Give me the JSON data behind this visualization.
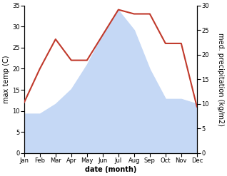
{
  "months": [
    "Jan",
    "Feb",
    "Mar",
    "Apr",
    "May",
    "Jun",
    "Jul",
    "Aug",
    "Sep",
    "Oct",
    "Nov",
    "Dec"
  ],
  "max_temp": [
    12,
    20,
    27,
    22,
    22,
    28,
    34,
    33,
    33,
    26,
    26,
    11
  ],
  "precipitation": [
    8,
    8,
    10,
    13,
    18,
    24,
    29,
    25,
    17,
    11,
    11,
    10
  ],
  "temp_ylim": [
    0,
    35
  ],
  "precip_ylim": [
    0,
    30
  ],
  "temp_color": "#c0392b",
  "precip_fill_color": "#c5d8f5",
  "xlabel": "date (month)",
  "ylabel_left": "max temp (C)",
  "ylabel_right": "med. precipitation (kg/m2)",
  "background_color": "#ffffff",
  "temp_linewidth": 1.5,
  "tick_fontsize": 6,
  "label_fontsize": 7,
  "xlabel_fontsize": 7
}
